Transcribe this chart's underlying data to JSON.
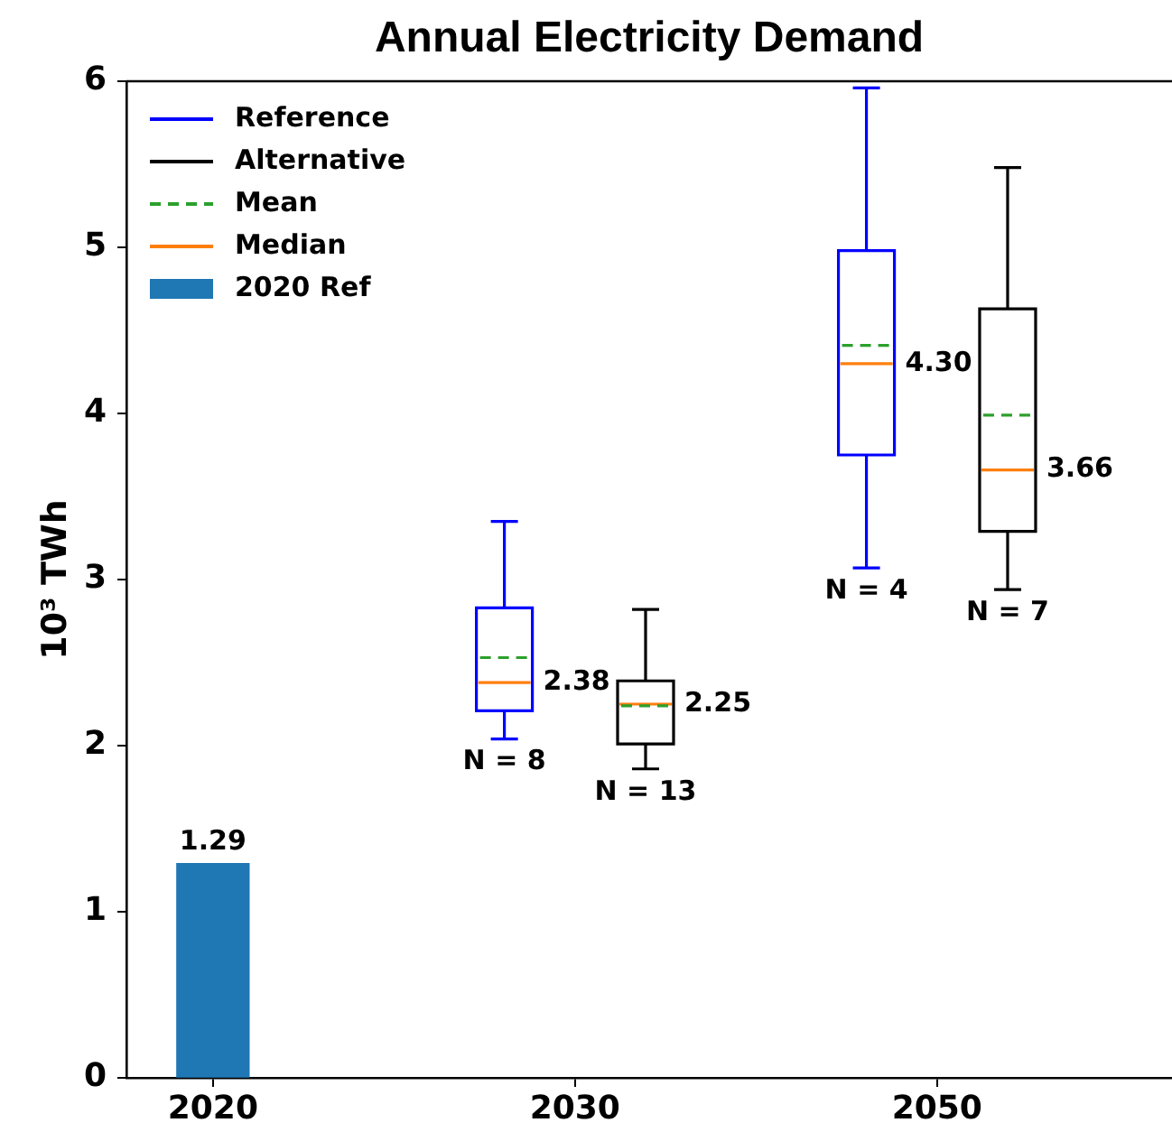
{
  "chart_data": {
    "type": "box",
    "title": "Annual Electricity Demand",
    "ylabel": "10³ TWh",
    "categories": [
      "2020",
      "2030",
      "2050"
    ],
    "series": [
      {
        "name": "Reference",
        "type": "box",
        "color": "#0000ff",
        "boxes": [
          null,
          {
            "low": 2.04,
            "q1": 2.21,
            "median": 2.38,
            "q3": 2.83,
            "high": 3.35,
            "mean": 2.53
          },
          {
            "low": 3.07,
            "q1": 3.75,
            "median": 4.3,
            "q3": 4.98,
            "high": 5.96,
            "mean": 4.41
          }
        ],
        "value_labels": [
          null,
          "2.38",
          "4.30"
        ]
      },
      {
        "name": "Alternative",
        "type": "box",
        "color": "#000000",
        "boxes": [
          null,
          {
            "low": 1.86,
            "q1": 2.01,
            "median": 2.25,
            "q3": 2.39,
            "high": 2.82,
            "mean": 2.24
          },
          {
            "low": 2.94,
            "q1": 3.29,
            "median": 3.66,
            "q3": 4.63,
            "high": 5.48,
            "mean": 3.99
          }
        ],
        "value_labels": [
          null,
          "2.25",
          "3.66"
        ]
      },
      {
        "name": "Mean",
        "type": "line",
        "color": "#2ca02c",
        "line_style": "dashed",
        "values": [
          null,
          null,
          null
        ]
      },
      {
        "name": "Median",
        "type": "line",
        "color": "#ff7f0e",
        "values": [
          null,
          null,
          null
        ]
      },
      {
        "name": "2020 Ref",
        "type": "bar",
        "color": "#1f77b4",
        "values": [
          1.29,
          null,
          null
        ],
        "value_labels": [
          "1.29",
          null,
          null
        ]
      }
    ],
    "ylim": [
      0,
      6
    ],
    "yticks": [
      0,
      1,
      2,
      3,
      4,
      5,
      6
    ],
    "legend": "top left",
    "annotations": [
      "N = 8",
      "N = 13",
      "N = 4",
      "N = 7"
    ]
  }
}
